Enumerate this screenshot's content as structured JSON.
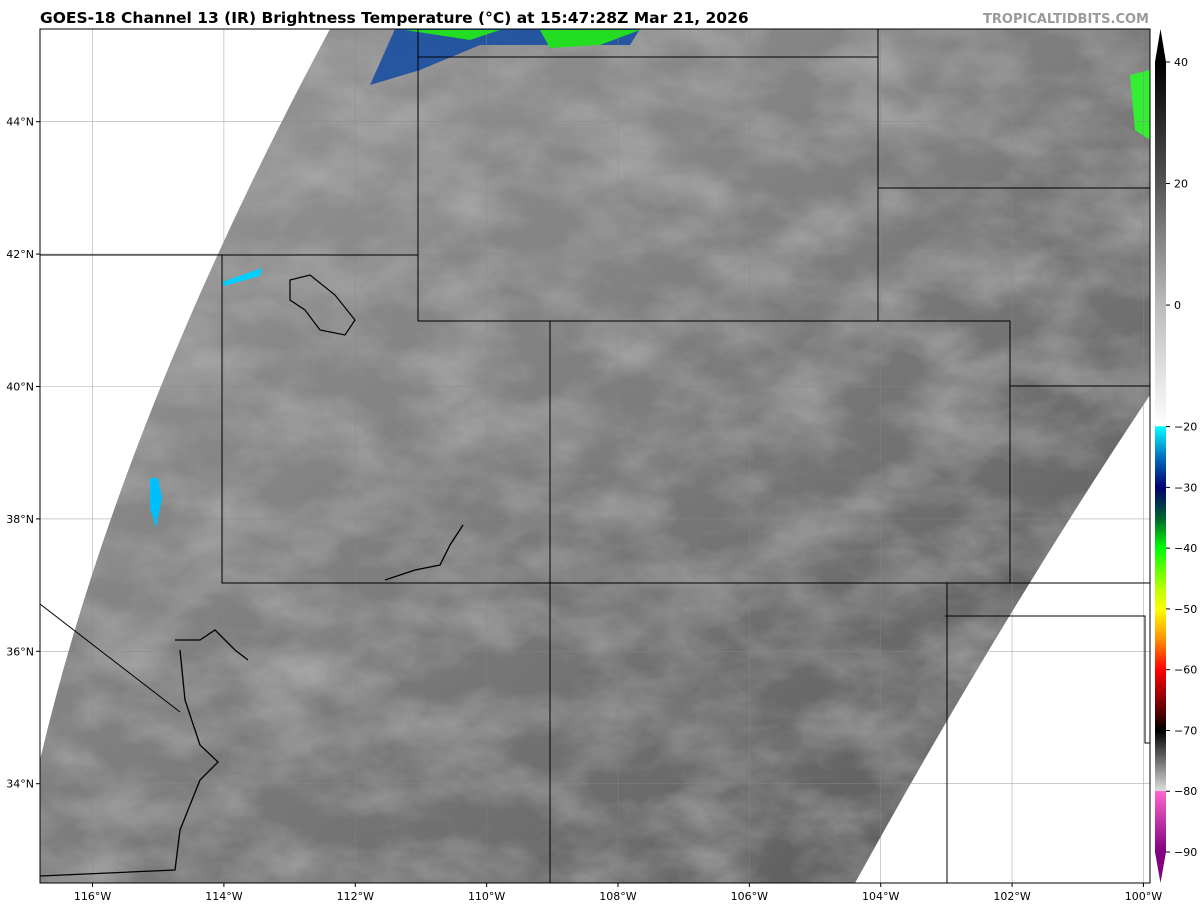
{
  "title": "GOES-18 Channel 13 (IR) Brightness Temperature (°C) at 15:47:28Z Mar 21, 2026",
  "watermark": "TROPICALTIDBITS.COM",
  "map": {
    "extent_lon": [
      -116.8,
      -99.9
    ],
    "extent_lat": [
      32.5,
      45.4
    ],
    "lon_ticks": [
      {
        "v": -116,
        "label": "116°W"
      },
      {
        "v": -114,
        "label": "114°W"
      },
      {
        "v": -112,
        "label": "112°W"
      },
      {
        "v": -110,
        "label": "110°W"
      },
      {
        "v": -108,
        "label": "108°W"
      },
      {
        "v": -106,
        "label": "106°W"
      },
      {
        "v": -104,
        "label": "104°W"
      },
      {
        "v": -102,
        "label": "102°W"
      },
      {
        "v": -100,
        "label": "100°W"
      }
    ],
    "lat_ticks": [
      {
        "v": 44,
        "label": "44°N"
      },
      {
        "v": 42,
        "label": "42°N"
      },
      {
        "v": 40,
        "label": "40°N"
      },
      {
        "v": 38,
        "label": "38°N"
      },
      {
        "v": 36,
        "label": "36°N"
      },
      {
        "v": 34,
        "label": "34°N"
      }
    ],
    "no_data_color": "#ffffff",
    "grid": true
  },
  "colorbar": {
    "range": [
      -90,
      40
    ],
    "ticks": [
      {
        "v": 40,
        "label": "40"
      },
      {
        "v": 20,
        "label": "20"
      },
      {
        "v": 0,
        "label": "0"
      },
      {
        "v": -20,
        "label": "−20"
      },
      {
        "v": -30,
        "label": "−30"
      },
      {
        "v": -40,
        "label": "−40"
      },
      {
        "v": -50,
        "label": "−50"
      },
      {
        "v": -60,
        "label": "−60"
      },
      {
        "v": -70,
        "label": "−70"
      },
      {
        "v": -80,
        "label": "−80"
      },
      {
        "v": -90,
        "label": "−90"
      }
    ],
    "stops": [
      {
        "v": 40,
        "c": "#000000"
      },
      {
        "v": 20,
        "c": "#555555"
      },
      {
        "v": 0,
        "c": "#bbbbbb"
      },
      {
        "v": -19.9,
        "c": "#ffffff"
      },
      {
        "v": -20,
        "c": "#00ffff"
      },
      {
        "v": -25,
        "c": "#0070c0"
      },
      {
        "v": -30,
        "c": "#000070"
      },
      {
        "v": -35,
        "c": "#006030"
      },
      {
        "v": -40,
        "c": "#00ff00"
      },
      {
        "v": -47,
        "c": "#c0ff00"
      },
      {
        "v": -50,
        "c": "#ffff00"
      },
      {
        "v": -55,
        "c": "#ff9000"
      },
      {
        "v": -60,
        "c": "#ff0000"
      },
      {
        "v": -66,
        "c": "#700000"
      },
      {
        "v": -70,
        "c": "#000000"
      },
      {
        "v": -79.9,
        "c": "#dddddd"
      },
      {
        "v": -80,
        "c": "#ff66cc"
      },
      {
        "v": -90,
        "c": "#800080"
      }
    ]
  }
}
